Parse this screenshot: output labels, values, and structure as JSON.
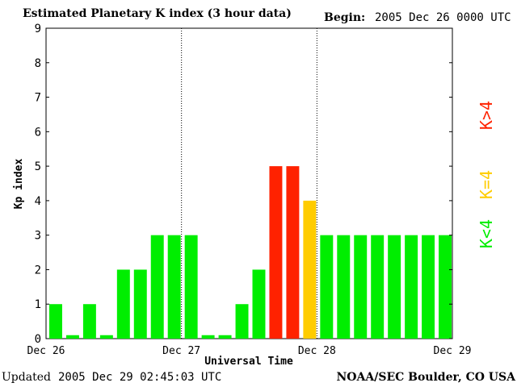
{
  "header": {
    "title": "Estimated Planetary K index (3 hour data)",
    "begin_label": "Begin:",
    "begin_value": "2005 Dec 26 0000 UTC"
  },
  "footer": {
    "updated_label": "Updated",
    "updated_value": "2005 Dec 29 02:45:03 UTC",
    "source": "NOAA/SEC Boulder, CO USA"
  },
  "legend": [
    {
      "label": "K>4",
      "color": "#ff2200"
    },
    {
      "label": "K=4",
      "color": "#ffcc00"
    },
    {
      "label": "K<4",
      "color": "#00ee00"
    }
  ],
  "chart_data": {
    "type": "bar",
    "title": "Estimated Planetary K index (3 hour data)",
    "xlabel": "Universal Time",
    "ylabel": "Kp index",
    "ylim": [
      0,
      9
    ],
    "yticks": [
      "0",
      "1",
      "2",
      "3",
      "4",
      "5",
      "6",
      "7",
      "8",
      "9"
    ],
    "xticks": [
      "Dec 26",
      "Dec 27",
      "Dec 28",
      "Dec 29"
    ],
    "values": [
      1,
      0.1,
      1,
      0.1,
      2,
      2,
      3,
      3,
      3,
      0.1,
      0.1,
      1,
      2,
      5,
      5,
      4,
      3,
      3,
      3,
      3,
      3,
      3,
      3,
      3
    ],
    "colors": {
      "below": "#00ee00",
      "equal": "#ffcc00",
      "above": "#ff2200"
    }
  }
}
